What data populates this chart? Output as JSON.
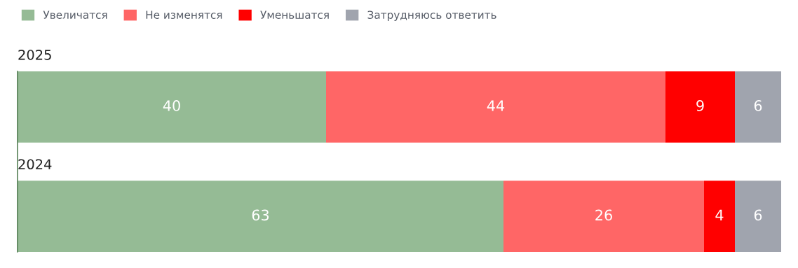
{
  "chart_data": {
    "type": "bar",
    "orientation": "horizontal",
    "stacked": true,
    "categories": [
      "2025",
      "2024"
    ],
    "series": [
      {
        "name": "Увеличатся",
        "color": "#95bb95",
        "values": [
          40,
          63
        ]
      },
      {
        "name": "Не изменятся",
        "color": "#ff6666",
        "values": [
          44,
          26
        ]
      },
      {
        "name": "Уменьшатся",
        "color": "#ff0000",
        "values": [
          9,
          4
        ]
      },
      {
        "name": "Затрудняюсь ответить",
        "color": "#a0a4ae",
        "values": [
          6,
          6
        ]
      }
    ],
    "data_labels": true,
    "legend": "top left"
  }
}
